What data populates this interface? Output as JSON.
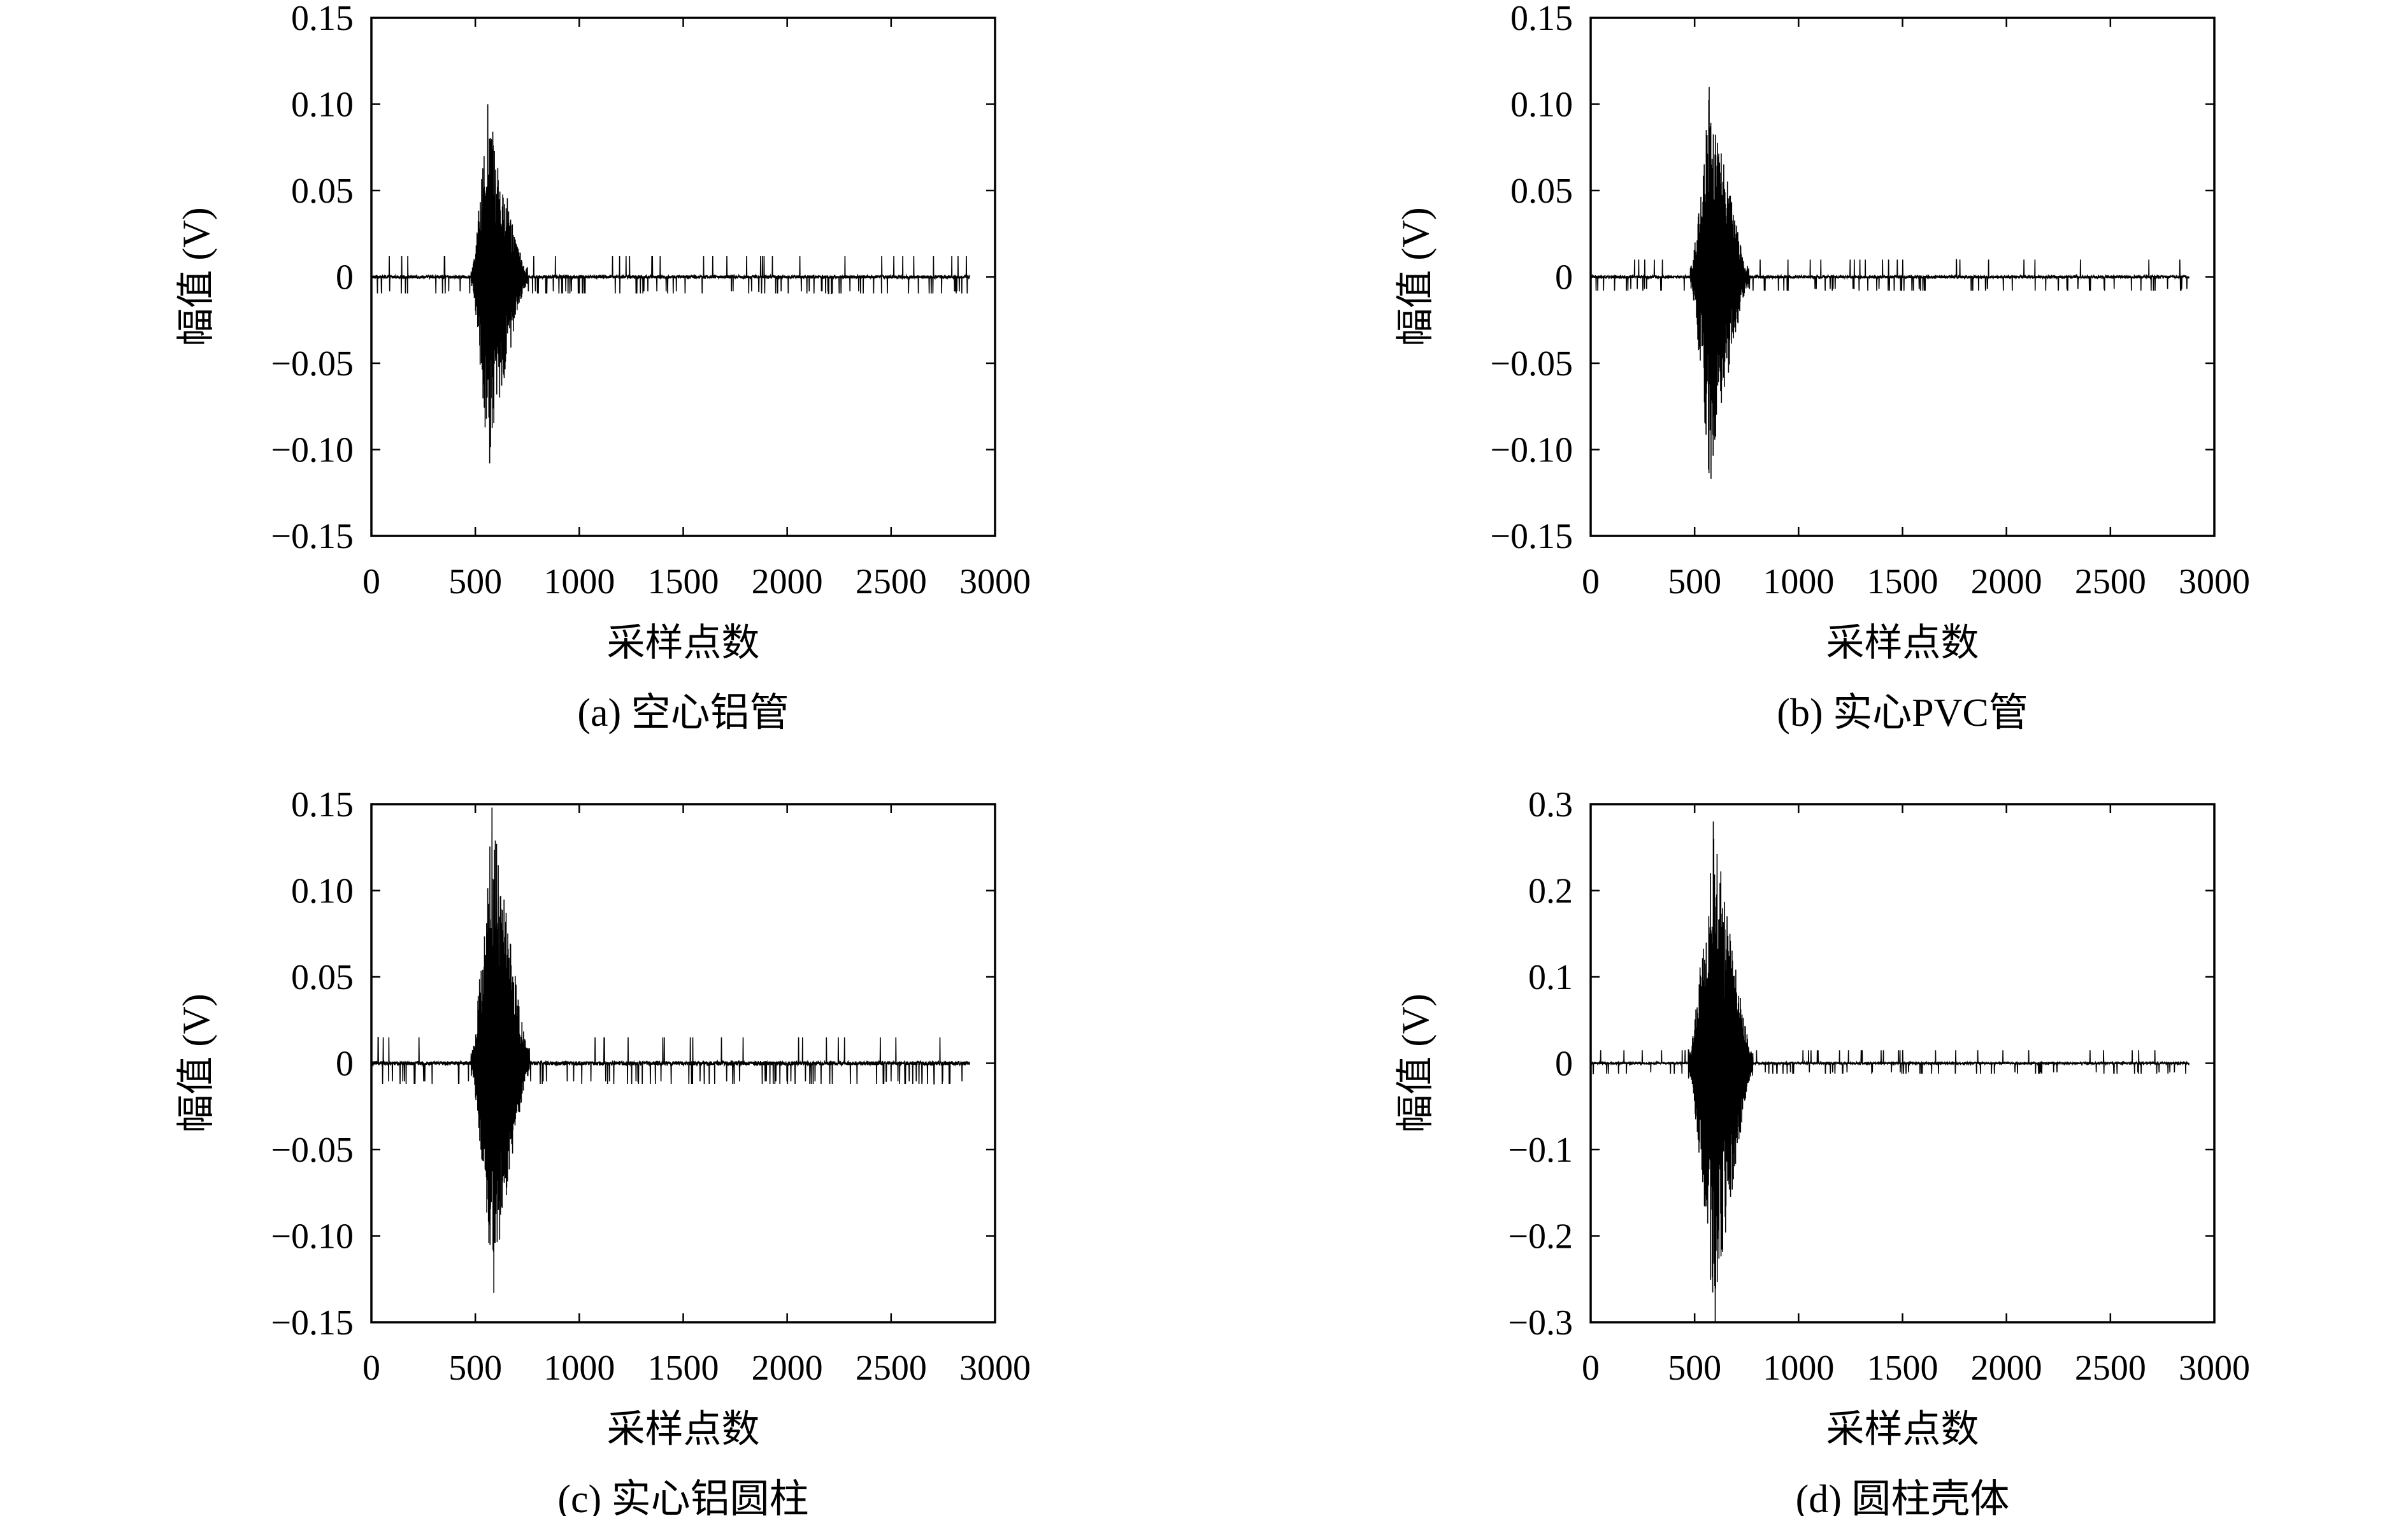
{
  "figure": {
    "panels": [
      {
        "caption": "(a) 空心铝管"
      },
      {
        "caption": "(b) 实心PVC管"
      },
      {
        "caption": "(c) 实心铝圆柱"
      },
      {
        "caption": "(d) 圆柱壳体"
      }
    ]
  },
  "chart_data": [
    {
      "type": "line",
      "caption": "(a) 空心铝管",
      "xlabel": "采样点数",
      "ylabel": "幅值 (V)",
      "xlim": [
        0,
        3000
      ],
      "ylim": [
        -0.15,
        0.15
      ],
      "xticks": [
        "0",
        "500",
        "1000",
        "1500",
        "2000",
        "2500",
        "3000"
      ],
      "yticks": [
        "0.15",
        "0.10",
        "0.05",
        "0",
        "−0.05",
        "−0.10",
        "−0.15"
      ],
      "grid": false,
      "series": [
        {
          "color": "#000000",
          "signal": {
            "sample_count": 2880,
            "burst_start": 480,
            "burst_peak": 560,
            "burst_end": 750,
            "peak_positive": 0.1,
            "peak_negative": -0.108,
            "noise_spike": 0.012
          }
        }
      ]
    },
    {
      "type": "line",
      "caption": "(b) 实心PVC管",
      "xlabel": "采样点数",
      "ylabel": "幅值 (V)",
      "xlim": [
        0,
        3000
      ],
      "ylim": [
        -0.15,
        0.15
      ],
      "xticks": [
        "0",
        "500",
        "1000",
        "1500",
        "2000",
        "2500",
        "3000"
      ],
      "yticks": [
        "0.15",
        "0.10",
        "0.05",
        "0",
        "−0.05",
        "−0.10",
        "−0.15"
      ],
      "grid": false,
      "series": [
        {
          "color": "#000000",
          "signal": {
            "sample_count": 2880,
            "burst_start": 480,
            "burst_peak": 570,
            "burst_end": 760,
            "peak_positive": 0.11,
            "peak_negative": -0.117,
            "noise_spike": 0.01
          }
        }
      ]
    },
    {
      "type": "line",
      "caption": "(c) 实心铝圆柱",
      "xlabel": "采样点数",
      "ylabel": "幅值 (V)",
      "xlim": [
        0,
        3000
      ],
      "ylim": [
        -0.15,
        0.15
      ],
      "xticks": [
        "0",
        "500",
        "1000",
        "1500",
        "2000",
        "2500",
        "3000"
      ],
      "yticks": [
        "0.15",
        "0.10",
        "0.05",
        "0",
        "−0.05",
        "−0.10",
        "−0.15"
      ],
      "grid": false,
      "series": [
        {
          "color": "#000000",
          "signal": {
            "sample_count": 2880,
            "burst_start": 480,
            "burst_peak": 580,
            "burst_end": 760,
            "peak_positive": 0.148,
            "peak_negative": -0.133,
            "noise_spike": 0.015
          }
        }
      ]
    },
    {
      "type": "line",
      "caption": "(d) 圆柱壳体",
      "xlabel": "采样点数",
      "ylabel": "幅值 (V)",
      "xlim": [
        0,
        3000
      ],
      "ylim": [
        -0.3,
        0.3
      ],
      "xticks": [
        "0",
        "500",
        "1000",
        "1500",
        "2000",
        "2500",
        "3000"
      ],
      "yticks": [
        "0.3",
        "0.2",
        "0.1",
        "0",
        "−0.1",
        "−0.2",
        "−0.3"
      ],
      "grid": false,
      "series": [
        {
          "color": "#000000",
          "signal": {
            "sample_count": 2880,
            "burst_start": 470,
            "burst_peak": 590,
            "burst_end": 780,
            "peak_positive": 0.28,
            "peak_negative": -0.3,
            "noise_spike": 0.015
          }
        }
      ]
    }
  ]
}
